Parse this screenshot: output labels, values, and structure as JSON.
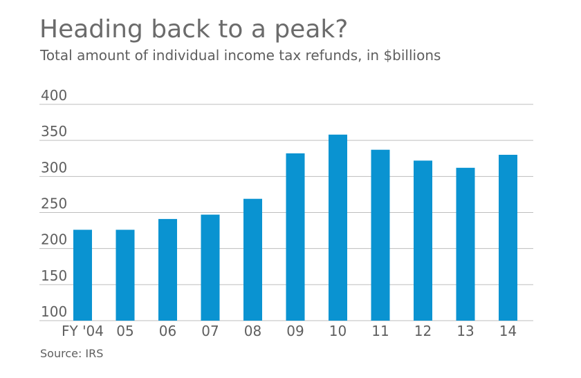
{
  "chart_data": {
    "type": "bar",
    "title": "Heading back to a peak?",
    "subtitle": "Total amount of individual income tax refunds, in $billions",
    "categories": [
      "FY '04",
      "05",
      "06",
      "07",
      "08",
      "09",
      "10",
      "11",
      "12",
      "13",
      "14"
    ],
    "values": [
      226,
      226,
      241,
      247,
      269,
      332,
      358,
      337,
      322,
      312,
      330
    ],
    "yticks": [
      100,
      150,
      200,
      250,
      300,
      350,
      400
    ],
    "ylim": [
      100,
      400
    ],
    "xlabel": "",
    "ylabel": "",
    "grid": true,
    "bar_color": "#0a93d1",
    "source": "Source: IRS"
  }
}
